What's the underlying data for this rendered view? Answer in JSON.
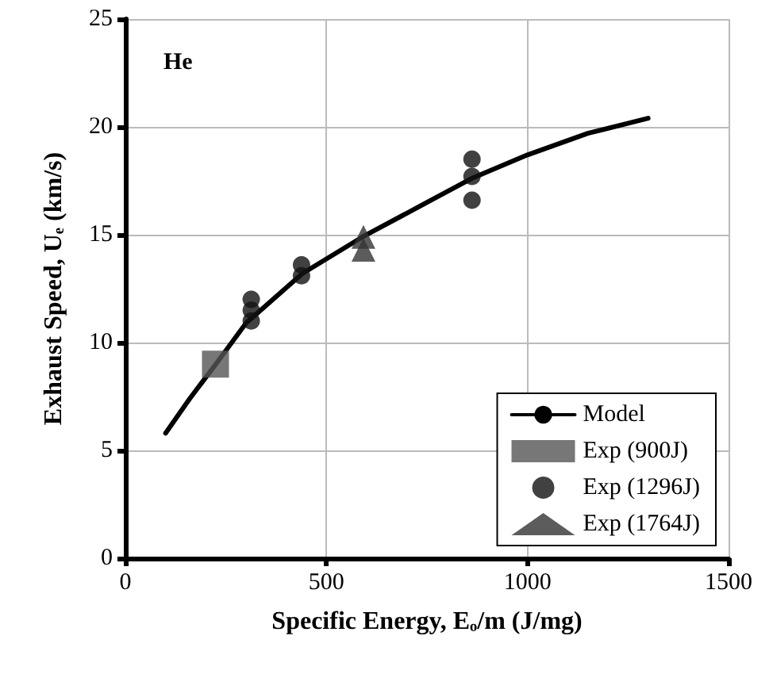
{
  "chart_data": {
    "type": "scatter",
    "xlabel": "Specific Energy, Eₒ/m (J/mg)",
    "ylabel": "Exhaust Speed, Uₑ (km/s)",
    "annotations": [
      "He"
    ],
    "xlim": [
      0,
      1500
    ],
    "xticks": [
      0,
      500,
      1000,
      1500
    ],
    "ylim": [
      0,
      25
    ],
    "yticks": [
      0,
      5,
      10,
      15,
      20,
      25
    ],
    "grid": true,
    "legend": "bottom right",
    "series": [
      {
        "name": "Model",
        "type": "line",
        "color": "#000000",
        "marker": "none",
        "line_style": "solid",
        "x": [
          100,
          160,
          225,
          300,
          440,
          590,
          700,
          860,
          1000,
          1150,
          1300
        ],
        "values": [
          5.8,
          7.4,
          9.0,
          10.9,
          13.2,
          14.9,
          16.0,
          17.6,
          18.7,
          19.7,
          20.4
        ]
      },
      {
        "name": "Exp (900J)",
        "color": "#555555",
        "marker": "square",
        "x": [
          224
        ],
        "values": [
          9.0
        ]
      },
      {
        "name": "Exp (1296J)",
        "color": "#111111",
        "marker": "circle",
        "x": [
          313,
          313,
          313,
          438,
          438,
          862,
          862,
          862
        ],
        "values": [
          12.0,
          11.5,
          11.0,
          13.6,
          13.1,
          18.5,
          17.7,
          16.6
        ]
      },
      {
        "name": "Exp (1764J)",
        "color": "#333333",
        "marker": "triangle",
        "x": [
          592,
          592
        ],
        "values": [
          14.9,
          14.3
        ]
      }
    ]
  }
}
